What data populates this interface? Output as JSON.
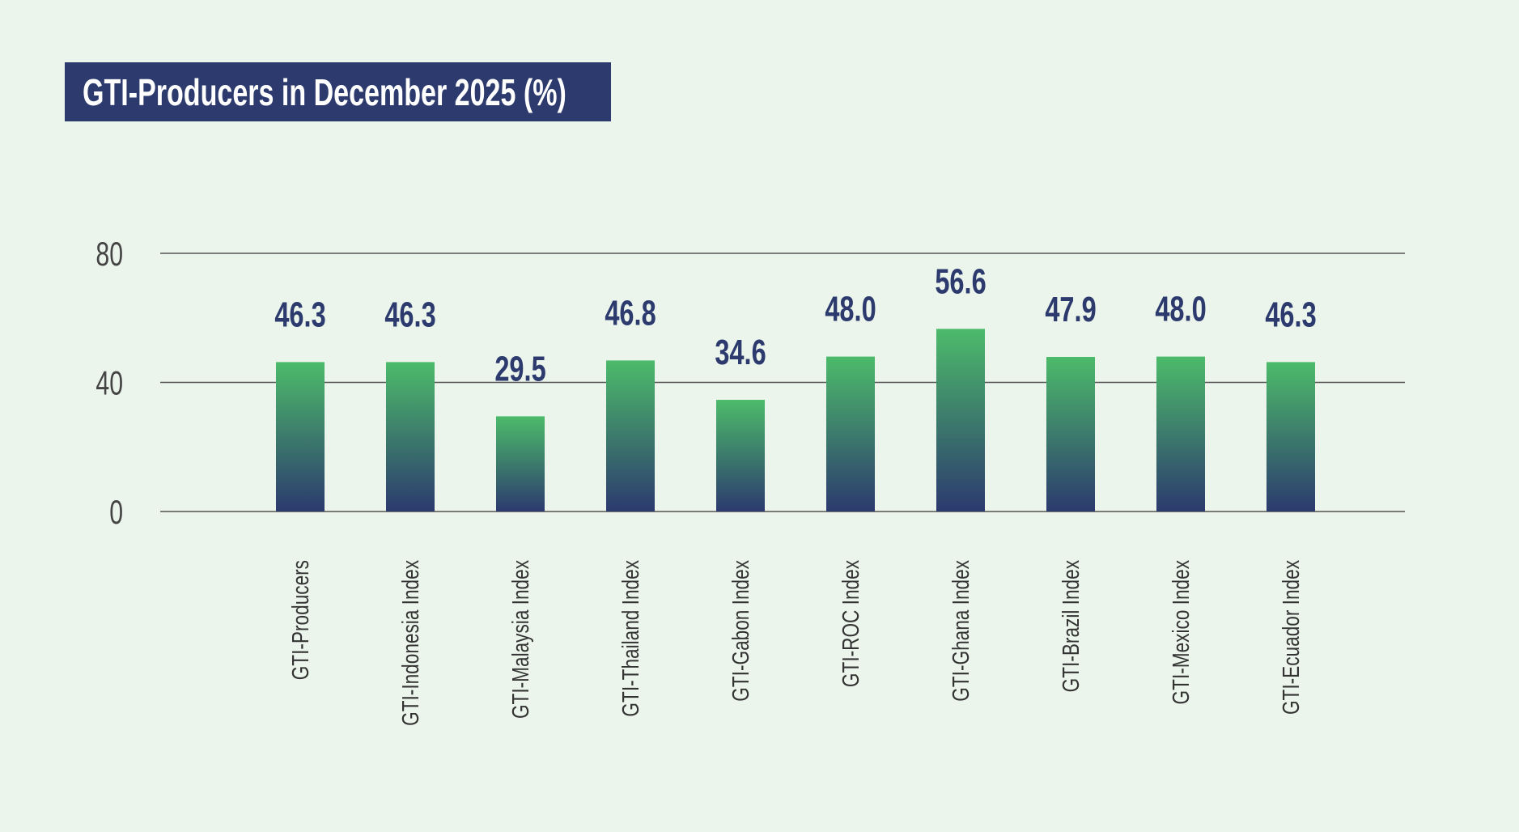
{
  "chart_data": {
    "type": "bar",
    "title": "GTI-Producers in December 2025 (%)",
    "categories": [
      "GTI-Producers",
      "GTI-Indonesia Index",
      "GTI-Malaysia Index",
      "GTI-Thailand Index",
      "GTI-Gabon Index",
      "GTI-ROC Index",
      "GTI-Ghana Index",
      "GTI-Brazil Index",
      "GTI-Mexico Index",
      "GTI-Ecuador Index"
    ],
    "values": [
      46.3,
      46.3,
      29.5,
      46.8,
      34.6,
      48.0,
      56.6,
      47.9,
      48.0,
      46.3
    ],
    "data_labels": [
      "46.3",
      "46.3",
      "29.5",
      "46.8",
      "34.6",
      "48.0",
      "56.6",
      "47.9",
      "48.0",
      "46.3"
    ],
    "xlabel": "",
    "ylabel": "",
    "ylim": [
      0,
      80
    ],
    "yticks": [
      "0",
      "40",
      "80"
    ],
    "grid": true,
    "legend": "none",
    "colors": {
      "bar_top": "#4cbb6a",
      "bar_bottom": "#2c3a6e",
      "title_bg": "#2c3a6e",
      "data_label": "#2c3a6e",
      "background": "#ebf5ec"
    }
  }
}
